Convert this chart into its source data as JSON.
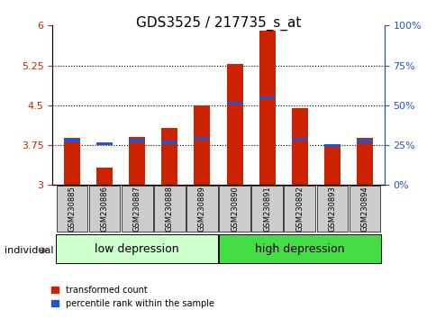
{
  "title": "GDS3525 / 217735_s_at",
  "samples": [
    "GSM230885",
    "GSM230886",
    "GSM230887",
    "GSM230888",
    "GSM230889",
    "GSM230890",
    "GSM230891",
    "GSM230892",
    "GSM230893",
    "GSM230894"
  ],
  "red_values": [
    3.88,
    3.32,
    3.9,
    4.08,
    4.5,
    5.28,
    5.9,
    4.44,
    3.76,
    3.88
  ],
  "blue_values": [
    3.84,
    3.78,
    3.84,
    3.8,
    3.88,
    4.54,
    4.64,
    3.86,
    3.74,
    3.82
  ],
  "ylim_left": [
    3.0,
    6.0
  ],
  "ylim_right": [
    0,
    100
  ],
  "yticks_left": [
    3,
    3.75,
    4.5,
    5.25,
    6
  ],
  "yticks_right": [
    0,
    25,
    50,
    75,
    100
  ],
  "ytick_labels_left": [
    "3",
    "3.75",
    "4.5",
    "5.25",
    "6"
  ],
  "ytick_labels_right": [
    "0%",
    "25%",
    "50%",
    "75%",
    "100%"
  ],
  "group1_label": "low depression",
  "group2_label": "high depression",
  "group1_count": 5,
  "group2_count": 5,
  "individual_label": "individual",
  "legend_red": "transformed count",
  "legend_blue": "percentile rank within the sample",
  "bar_color": "#cc2200",
  "blue_color": "#2255cc",
  "bar_width": 0.5,
  "group1_bg": "#ccffcc",
  "group2_bg": "#44dd44",
  "xlabel_box_bg": "#cccccc",
  "baseline": 3.0
}
